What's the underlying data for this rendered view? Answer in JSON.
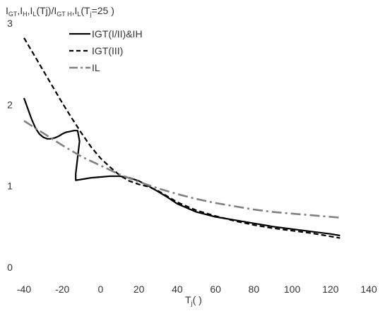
{
  "chart_data": {
    "type": "line",
    "title": "",
    "ylabel": "I_GT, I_H, I_L(Tj)/I_GT, I_H, I_L(Tj=25  )",
    "ylabel_parts": {
      "p1": "I",
      "p1s": "GT",
      "p2": ",I",
      "p2s": "H",
      "p3": ",I",
      "p3s": "L",
      "p4": "(Tj)/I",
      "p4s": "GT H",
      "p5": ",I",
      "p5s": "L",
      "p6": "(T",
      "p6s": "j",
      "p7": "=25  )"
    },
    "xlabel": "Tj(  )",
    "xlabel_parts": {
      "main": "T",
      "sub": "j",
      "rest": "(    )"
    },
    "xlim": [
      -40,
      140
    ],
    "ylim": [
      0,
      3
    ],
    "x_ticks": [
      "-40",
      "-20",
      "0",
      "20",
      "40",
      "60",
      "80",
      "100",
      "120",
      "140"
    ],
    "y_ticks": [
      "0",
      "1",
      "2",
      "3"
    ],
    "grid": false,
    "legend": "top-left",
    "series": [
      {
        "name": "IGT(I/II)&IH",
        "style": "solid",
        "color": "#000000",
        "points": [
          [
            -40,
            2.08
          ],
          [
            -38,
            1.95
          ],
          [
            -36,
            1.82
          ],
          [
            -34,
            1.71
          ],
          [
            -32,
            1.64
          ],
          [
            -30,
            1.6
          ],
          [
            -28,
            1.58
          ],
          [
            -26,
            1.58
          ],
          [
            -24,
            1.59
          ],
          [
            -22,
            1.61
          ],
          [
            -20,
            1.64
          ],
          [
            -18,
            1.66
          ],
          [
            -16,
            1.67
          ],
          [
            -14,
            1.68
          ],
          [
            -12,
            1.68
          ],
          [
            -11,
            1.55
          ],
          [
            -12,
            1.35
          ],
          [
            -13,
            1.15
          ],
          [
            -13,
            1.07
          ],
          [
            -10,
            1.08
          ],
          [
            -5,
            1.1
          ],
          [
            0,
            1.11
          ],
          [
            5,
            1.12
          ],
          [
            10,
            1.12
          ],
          [
            15,
            1.1
          ],
          [
            20,
            1.06
          ],
          [
            25,
            1.0
          ],
          [
            30,
            0.93
          ],
          [
            35,
            0.86
          ],
          [
            40,
            0.78
          ],
          [
            50,
            0.68
          ],
          [
            60,
            0.62
          ],
          [
            70,
            0.58
          ],
          [
            80,
            0.54
          ],
          [
            90,
            0.5
          ],
          [
            100,
            0.47
          ],
          [
            110,
            0.44
          ],
          [
            120,
            0.41
          ],
          [
            125,
            0.39
          ]
        ]
      },
      {
        "name": "IGT(III)",
        "style": "dashed",
        "color": "#000000",
        "points": [
          [
            -40,
            2.82
          ],
          [
            -35,
            2.62
          ],
          [
            -30,
            2.42
          ],
          [
            -25,
            2.22
          ],
          [
            -20,
            2.02
          ],
          [
            -15,
            1.83
          ],
          [
            -10,
            1.65
          ],
          [
            -5,
            1.48
          ],
          [
            0,
            1.34
          ],
          [
            5,
            1.23
          ],
          [
            10,
            1.13
          ],
          [
            15,
            1.06
          ],
          [
            20,
            1.02
          ],
          [
            25,
            0.99
          ],
          [
            30,
            0.94
          ],
          [
            40,
            0.8
          ],
          [
            50,
            0.7
          ],
          [
            60,
            0.63
          ],
          [
            70,
            0.57
          ],
          [
            80,
            0.52
          ],
          [
            90,
            0.48
          ],
          [
            100,
            0.45
          ],
          [
            110,
            0.42
          ],
          [
            120,
            0.38
          ],
          [
            125,
            0.36
          ]
        ]
      },
      {
        "name": "IL",
        "style": "dashdot",
        "color": "#808080",
        "points": [
          [
            -40,
            1.8
          ],
          [
            -30,
            1.65
          ],
          [
            -20,
            1.5
          ],
          [
            -10,
            1.36
          ],
          [
            0,
            1.25
          ],
          [
            10,
            1.14
          ],
          [
            20,
            1.05
          ],
          [
            30,
            0.97
          ],
          [
            40,
            0.9
          ],
          [
            50,
            0.84
          ],
          [
            60,
            0.79
          ],
          [
            70,
            0.75
          ],
          [
            80,
            0.71
          ],
          [
            90,
            0.68
          ],
          [
            100,
            0.66
          ],
          [
            110,
            0.64
          ],
          [
            120,
            0.62
          ],
          [
            125,
            0.61
          ]
        ]
      }
    ]
  }
}
